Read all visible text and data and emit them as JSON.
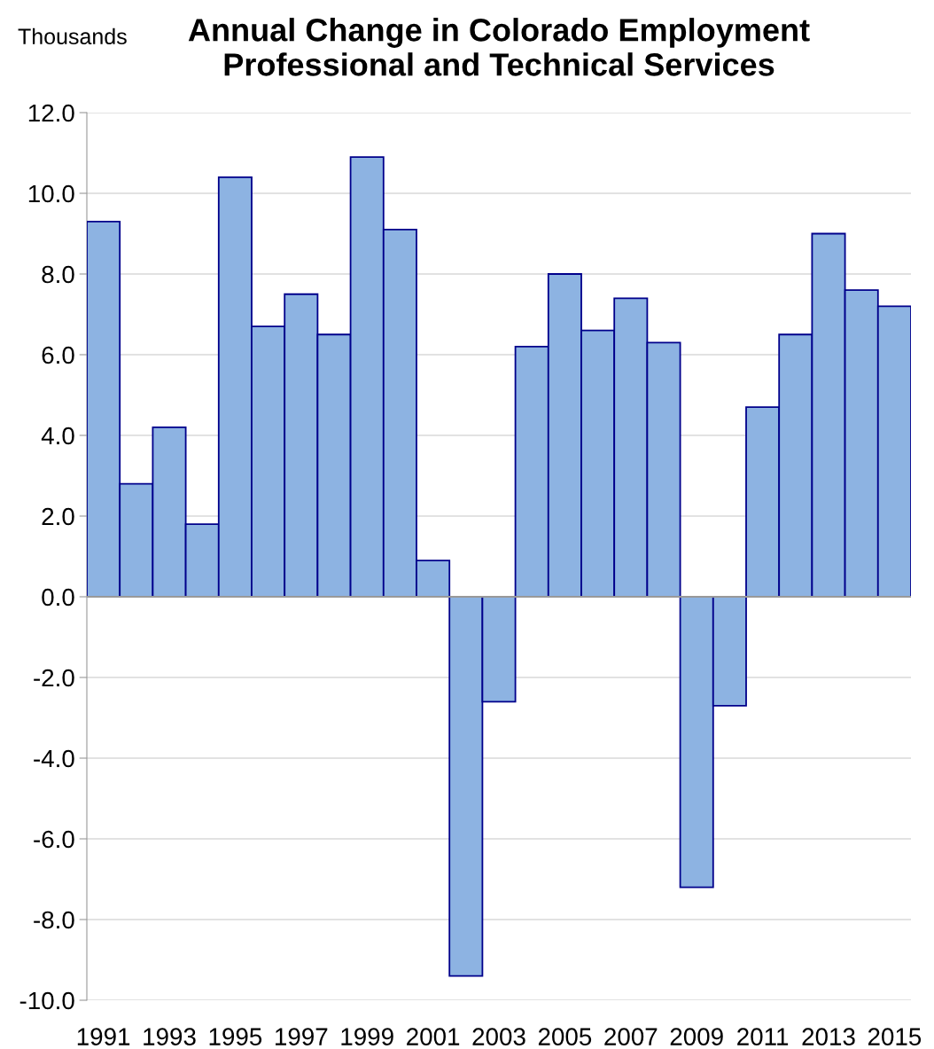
{
  "chart_data": {
    "type": "bar",
    "title": "Annual Change in Colorado Employment\nProfessional and Technical Services",
    "ylabel": "Thousands",
    "categories": [
      "1991",
      null,
      "1993",
      null,
      "1995",
      null,
      "1997",
      null,
      "1999",
      null,
      "2001",
      null,
      "2003",
      null,
      "2005",
      null,
      "2007",
      null,
      "2009",
      null,
      "2011",
      null,
      "2013",
      null,
      "2015"
    ],
    "values": [
      9.3,
      2.8,
      4.2,
      1.8,
      10.4,
      6.7,
      7.5,
      6.5,
      10.9,
      9.1,
      0.9,
      -9.4,
      -2.6,
      6.2,
      8.0,
      6.6,
      7.4,
      6.3,
      -7.2,
      -2.7,
      4.7,
      6.5,
      9.0,
      7.6,
      7.2
    ],
    "color": "#8db3e2",
    "ylim": [
      -10,
      12
    ],
    "yticks": [
      {
        "value": -10,
        "label": "-10.0"
      },
      {
        "value": -8,
        "label": "-8.0"
      },
      {
        "value": -6,
        "label": "-6.0"
      },
      {
        "value": -4,
        "label": "-4.0"
      },
      {
        "value": -2,
        "label": "-2.0"
      },
      {
        "value": 0,
        "label": "0.0"
      },
      {
        "value": 2,
        "label": "2.0"
      },
      {
        "value": 4,
        "label": "4.0"
      },
      {
        "value": 6,
        "label": "6.0"
      },
      {
        "value": 8,
        "label": "8.0"
      },
      {
        "value": 10,
        "label": "10.0"
      },
      {
        "value": 12,
        "label": "12.0"
      }
    ],
    "grid": "y"
  }
}
